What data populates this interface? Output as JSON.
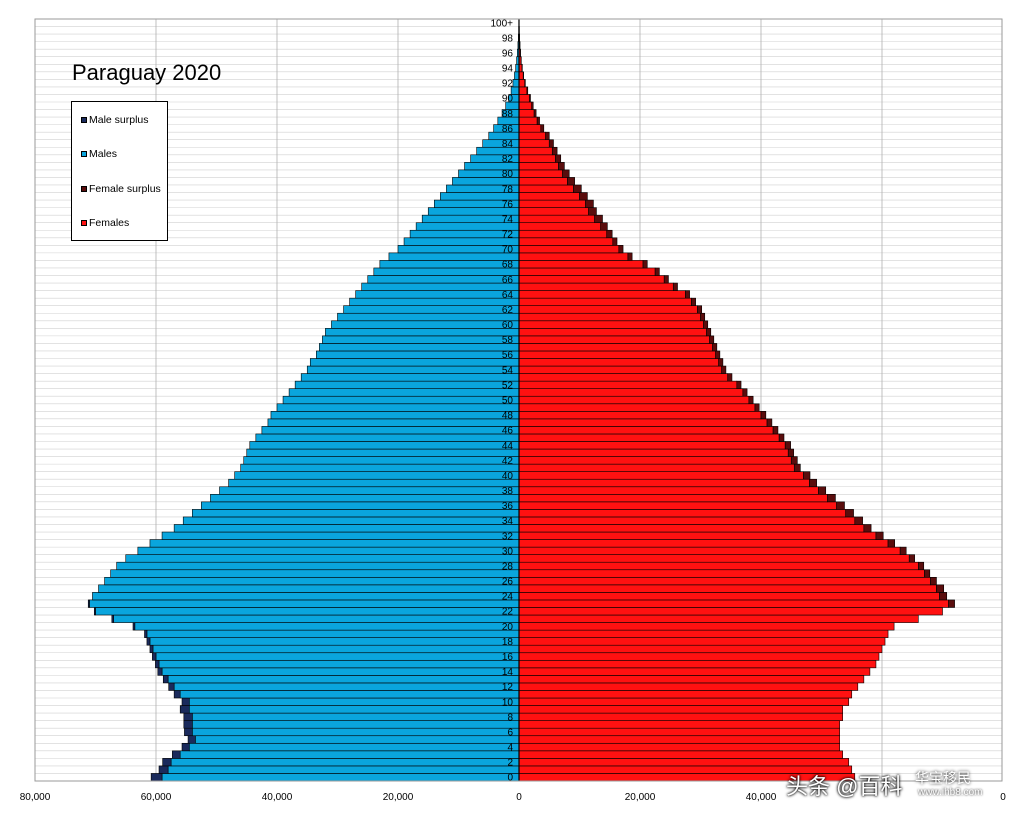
{
  "chart_data": {
    "type": "bar",
    "subtype": "population-pyramid",
    "title": "Paraguay 2020",
    "x_ticks_left": [
      "80,000",
      "60,000",
      "40,000",
      "20,000",
      "0"
    ],
    "x_ticks_right": [
      "20,000",
      "40,000",
      "0"
    ],
    "xlim": [
      -80000,
      80000
    ],
    "grid": true,
    "legend_position": "top-left",
    "legend": [
      {
        "label": "Male surplus",
        "color": "#1a2a5c"
      },
      {
        "label": "Males",
        "color": "#0aa5dd"
      },
      {
        "label": "Female surplus",
        "color": "#5a0d0d"
      },
      {
        "label": "Females",
        "color": "#ff1111"
      }
    ],
    "age_tick_labels": [
      "0",
      "2",
      "4",
      "6",
      "8",
      "10",
      "12",
      "14",
      "16",
      "18",
      "20",
      "22",
      "24",
      "26",
      "28",
      "30",
      "32",
      "34",
      "36",
      "38",
      "40",
      "42",
      "44",
      "46",
      "48",
      "50",
      "52",
      "54",
      "56",
      "58",
      "60",
      "62",
      "64",
      "66",
      "68",
      "70",
      "72",
      "74",
      "76",
      "78",
      "80",
      "82",
      "84",
      "86",
      "88",
      "90",
      "92",
      "94",
      "96",
      "98",
      "100+"
    ],
    "males": [
      59000,
      58000,
      57500,
      56000,
      54500,
      53500,
      54000,
      54000,
      54000,
      54500,
      54500,
      56000,
      57000,
      58000,
      59000,
      59500,
      60000,
      60500,
      61000,
      61500,
      63500,
      67000,
      70000,
      71000,
      70500,
      69500,
      68500,
      67500,
      66500,
      65000,
      63000,
      61000,
      59000,
      57000,
      55500,
      54000,
      52500,
      51000,
      49500,
      48000,
      47000,
      46000,
      45500,
      45000,
      44500,
      43500,
      42500,
      41500,
      41000,
      40000,
      39000,
      38000,
      37000,
      36000,
      35000,
      34500,
      33500,
      33000,
      32500,
      32000,
      31000,
      30000,
      29000,
      28000,
      27000,
      26000,
      25000,
      24000,
      23000,
      21500,
      20000,
      19000,
      18000,
      17000,
      16000,
      15000,
      14000,
      13000,
      12000,
      11000,
      10000,
      9000,
      8000,
      7000,
      6000,
      5000,
      4200,
      3500,
      2800,
      2200,
      1700,
      1300,
      1000,
      750,
      550,
      400,
      280,
      180,
      110,
      60,
      40
    ],
    "male_surplus": [
      1800,
      1500,
      1400,
      1300,
      1200,
      1200,
      1300,
      1400,
      1400,
      1500,
      1200,
      1000,
      900,
      800,
      700,
      600,
      600,
      500,
      500,
      400,
      300,
      300,
      200,
      200,
      0,
      0,
      0,
      0,
      0,
      0,
      0,
      0,
      0,
      0,
      0,
      0,
      0,
      0,
      0,
      0,
      0,
      0,
      0,
      0,
      0,
      0,
      0,
      0,
      0,
      0,
      0,
      0,
      0,
      0,
      0,
      0,
      0,
      0,
      0,
      0,
      0,
      0,
      0,
      0,
      0,
      0,
      0,
      0,
      0,
      0,
      0,
      0,
      0,
      0,
      0,
      0,
      0,
      0,
      0,
      0,
      0,
      0,
      0,
      0,
      0,
      0,
      0,
      0,
      0,
      0,
      0,
      0,
      0,
      0,
      0,
      0,
      0,
      0,
      0,
      0,
      0
    ],
    "females": [
      55500,
      55000,
      54500,
      53500,
      53000,
      53000,
      53000,
      53000,
      53500,
      53500,
      54500,
      55000,
      56000,
      57000,
      58000,
      59000,
      59500,
      60000,
      60500,
      61000,
      62000,
      66000,
      70000,
      71000,
      69500,
      69000,
      68000,
      67000,
      66000,
      64500,
      63000,
      61000,
      59000,
      57000,
      55500,
      54000,
      52500,
      51000,
      49500,
      48000,
      47000,
      45500,
      45000,
      44500,
      44000,
      43000,
      42000,
      41000,
      40000,
      39000,
      38000,
      37000,
      36000,
      34500,
      33500,
      33000,
      32500,
      32000,
      31500,
      31000,
      30500,
      30000,
      29500,
      28500,
      27500,
      25500,
      24000,
      22500,
      20500,
      18000,
      16500,
      15500,
      14500,
      13500,
      12500,
      11500,
      11000,
      10000,
      9000,
      8000,
      7200,
      6500,
      6000,
      5500,
      5000,
      4400,
      3600,
      3000,
      2500,
      2100,
      1700,
      1300,
      950,
      700,
      500,
      350,
      240,
      150,
      90,
      50,
      30
    ],
    "female_surplus": [
      0,
      0,
      0,
      0,
      0,
      0,
      0,
      0,
      0,
      0,
      0,
      0,
      0,
      0,
      0,
      0,
      0,
      0,
      0,
      0,
      0,
      0,
      0,
      1000,
      1200,
      1200,
      1000,
      900,
      900,
      900,
      1000,
      1100,
      1200,
      1200,
      1300,
      1300,
      1300,
      1300,
      1200,
      1200,
      1100,
      1000,
      1000,
      900,
      900,
      800,
      800,
      800,
      800,
      700,
      700,
      700,
      700,
      700,
      700,
      700,
      700,
      700,
      700,
      700,
      700,
      700,
      700,
      700,
      700,
      700,
      700,
      700,
      700,
      700,
      700,
      700,
      900,
      1100,
      1300,
      1300,
      1300,
      1300,
      1300,
      1200,
      1100,
      1000,
      900,
      800,
      700,
      600,
      500,
      400,
      330,
      250,
      200,
      150,
      100,
      70,
      50,
      30,
      20,
      15,
      10,
      5,
      5
    ]
  },
  "watermark": {
    "text1": "头条 @百科",
    "text2": "华宝移民",
    "text3": "www.ihb8.com"
  }
}
